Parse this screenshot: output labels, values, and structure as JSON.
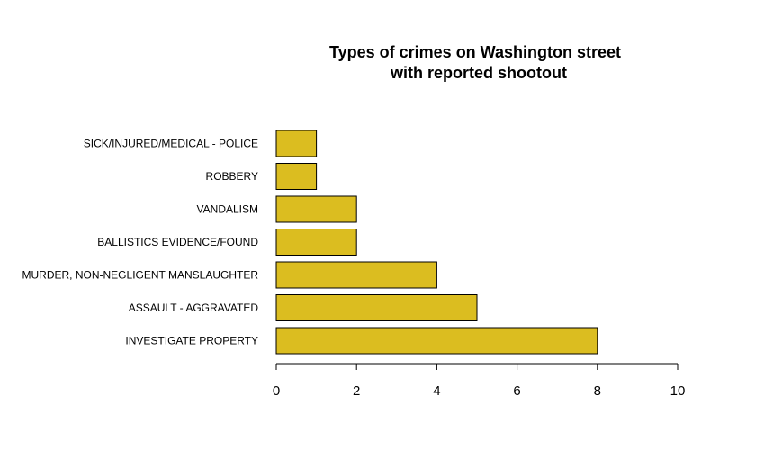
{
  "chart_data": {
    "type": "bar",
    "orientation": "horizontal",
    "title_lines": [
      "Types of crimes on Washington street",
      "with reported shootout"
    ],
    "categories": [
      "SICK/INJURED/MEDICAL - POLICE",
      "ROBBERY",
      "VANDALISM",
      "BALLISTICS EVIDENCE/FOUND",
      "MURDER, NON-NEGLIGENT MANSLAUGHTER",
      "ASSAULT - AGGRAVATED",
      "INVESTIGATE PROPERTY"
    ],
    "values": [
      1,
      1,
      2,
      2,
      4,
      5,
      8
    ],
    "xlim": [
      0,
      10
    ],
    "xticks": [
      0,
      2,
      4,
      6,
      8,
      10
    ],
    "xtick_labels": [
      "0",
      "2",
      "4",
      "6",
      "8",
      "10"
    ],
    "xlabel": "",
    "ylabel": "",
    "grid": false,
    "bar_color": "#DBBD20",
    "bar_edge_color": "#000000"
  }
}
